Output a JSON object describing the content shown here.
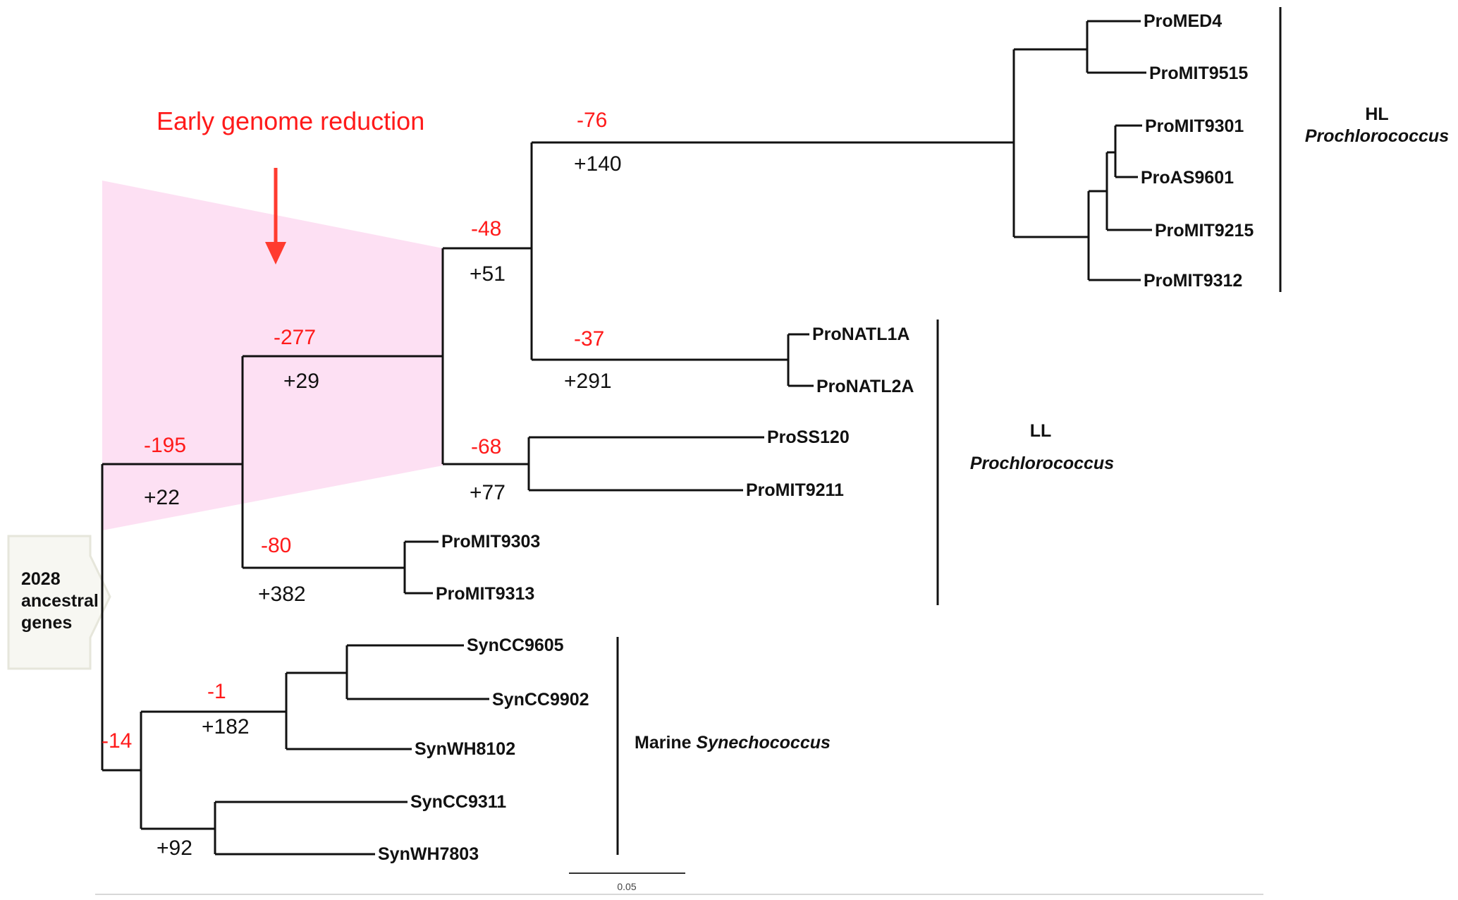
{
  "annotation": {
    "title": "Early genome reduction",
    "color": "#ff1a1a",
    "highlight_color": "#fde0f3"
  },
  "root_box": {
    "line1": "2028",
    "line2": "ancestral",
    "line3": "genes"
  },
  "leaves": {
    "promed4": "ProMED4",
    "promit9515": "ProMIT9515",
    "promit9301": "ProMIT9301",
    "proas9601": "ProAS9601",
    "promit9215": "ProMIT9215",
    "promit9312": "ProMIT9312",
    "pronatl1a": "ProNATL1A",
    "pronatl2a": "ProNATL2A",
    "pross120": "ProSS120",
    "promit9211": "ProMIT9211",
    "promit9303": "ProMIT9303",
    "promit9313": "ProMIT9313",
    "syncc9605": "SynCC9605",
    "syncc9902": "SynCC9902",
    "synwh8102": "SynWH8102",
    "syncc9311": "SynCC9311",
    "synwh7803": "SynWH7803"
  },
  "branch_labels": {
    "hl_loss": "-76",
    "hl_gain": "+140",
    "mid_loss": "-48",
    "mid_gain": "+51",
    "natl_loss": "-37",
    "natl_gain": "+291",
    "ss_loss": "-68",
    "ss_gain": "+77",
    "early_loss": "-277",
    "early_gain": "+29",
    "pro_loss": "-195",
    "pro_gain": "+22",
    "mit93_loss": "-80",
    "mit93_gain": "+382",
    "syn1_loss": "-1",
    "syn1_gain": "+182",
    "syn_loss": "-14",
    "syn2_gain": "+92"
  },
  "clades": {
    "hl_name": "HL",
    "hl_genus": "Prochlorococcus",
    "ll_name": "LL",
    "ll_genus": "Prochlorococcus",
    "marine_prefix": "Marine",
    "marine_genus": "Synechococcus"
  },
  "scale_bar": {
    "label": "0.05"
  }
}
